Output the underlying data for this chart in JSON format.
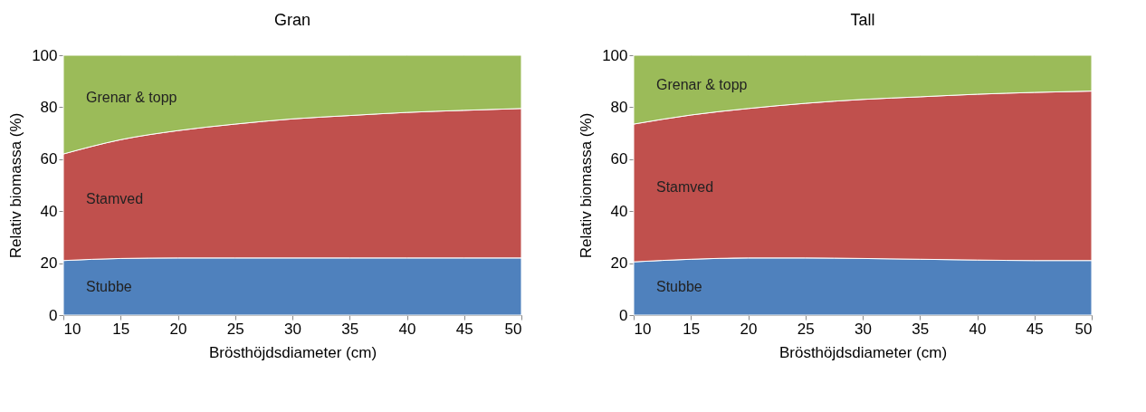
{
  "chart_data": [
    {
      "type": "area",
      "stacked": true,
      "title": "Gran",
      "xlabel": "Brösthöjdsdiameter (cm)",
      "ylabel": "Relativ biomassa (%)",
      "x": [
        10,
        15,
        20,
        25,
        30,
        35,
        40,
        45,
        50
      ],
      "xlim": [
        10,
        50
      ],
      "xticks": [
        10,
        15,
        20,
        25,
        30,
        35,
        40,
        45,
        50
      ],
      "ylim": [
        0,
        100
      ],
      "yticks": [
        0,
        20,
        40,
        60,
        80,
        100
      ],
      "grid": false,
      "series": [
        {
          "name": "Stubbe",
          "color": "#4f81bd",
          "values": [
            21,
            21.8,
            22,
            22,
            22,
            22,
            22,
            22,
            22
          ]
        },
        {
          "name": "Stamved",
          "color": "#c0504d",
          "values": [
            41,
            45.7,
            49,
            51.5,
            53.5,
            54.8,
            56,
            56.8,
            57.5
          ]
        },
        {
          "name": "Grenar & topp",
          "color": "#9bbb59",
          "values": [
            38,
            32.5,
            29,
            26.5,
            24.5,
            23.2,
            22,
            21.2,
            20.5
          ]
        }
      ]
    },
    {
      "type": "area",
      "stacked": true,
      "title": "Tall",
      "xlabel": "Brösthöjdsdiameter (cm)",
      "ylabel": "Relativ biomassa (%)",
      "x": [
        10,
        15,
        20,
        25,
        30,
        35,
        40,
        45,
        50
      ],
      "xlim": [
        10,
        50
      ],
      "xticks": [
        10,
        15,
        20,
        25,
        30,
        35,
        40,
        45,
        50
      ],
      "ylim": [
        0,
        100
      ],
      "yticks": [
        0,
        20,
        40,
        60,
        80,
        100
      ],
      "grid": false,
      "series": [
        {
          "name": "Stubbe",
          "color": "#4f81bd",
          "values": [
            20.5,
            21.5,
            22,
            22,
            21.8,
            21.5,
            21.2,
            21,
            21
          ]
        },
        {
          "name": "Stamved",
          "color": "#c0504d",
          "values": [
            53,
            55.5,
            57.5,
            59.5,
            61.2,
            62.5,
            63.8,
            64.7,
            65.2
          ]
        },
        {
          "name": "Grenar & topp",
          "color": "#9bbb59",
          "values": [
            26.5,
            23,
            20.5,
            18.5,
            17,
            16,
            15,
            14.3,
            13.8
          ]
        }
      ]
    }
  ]
}
